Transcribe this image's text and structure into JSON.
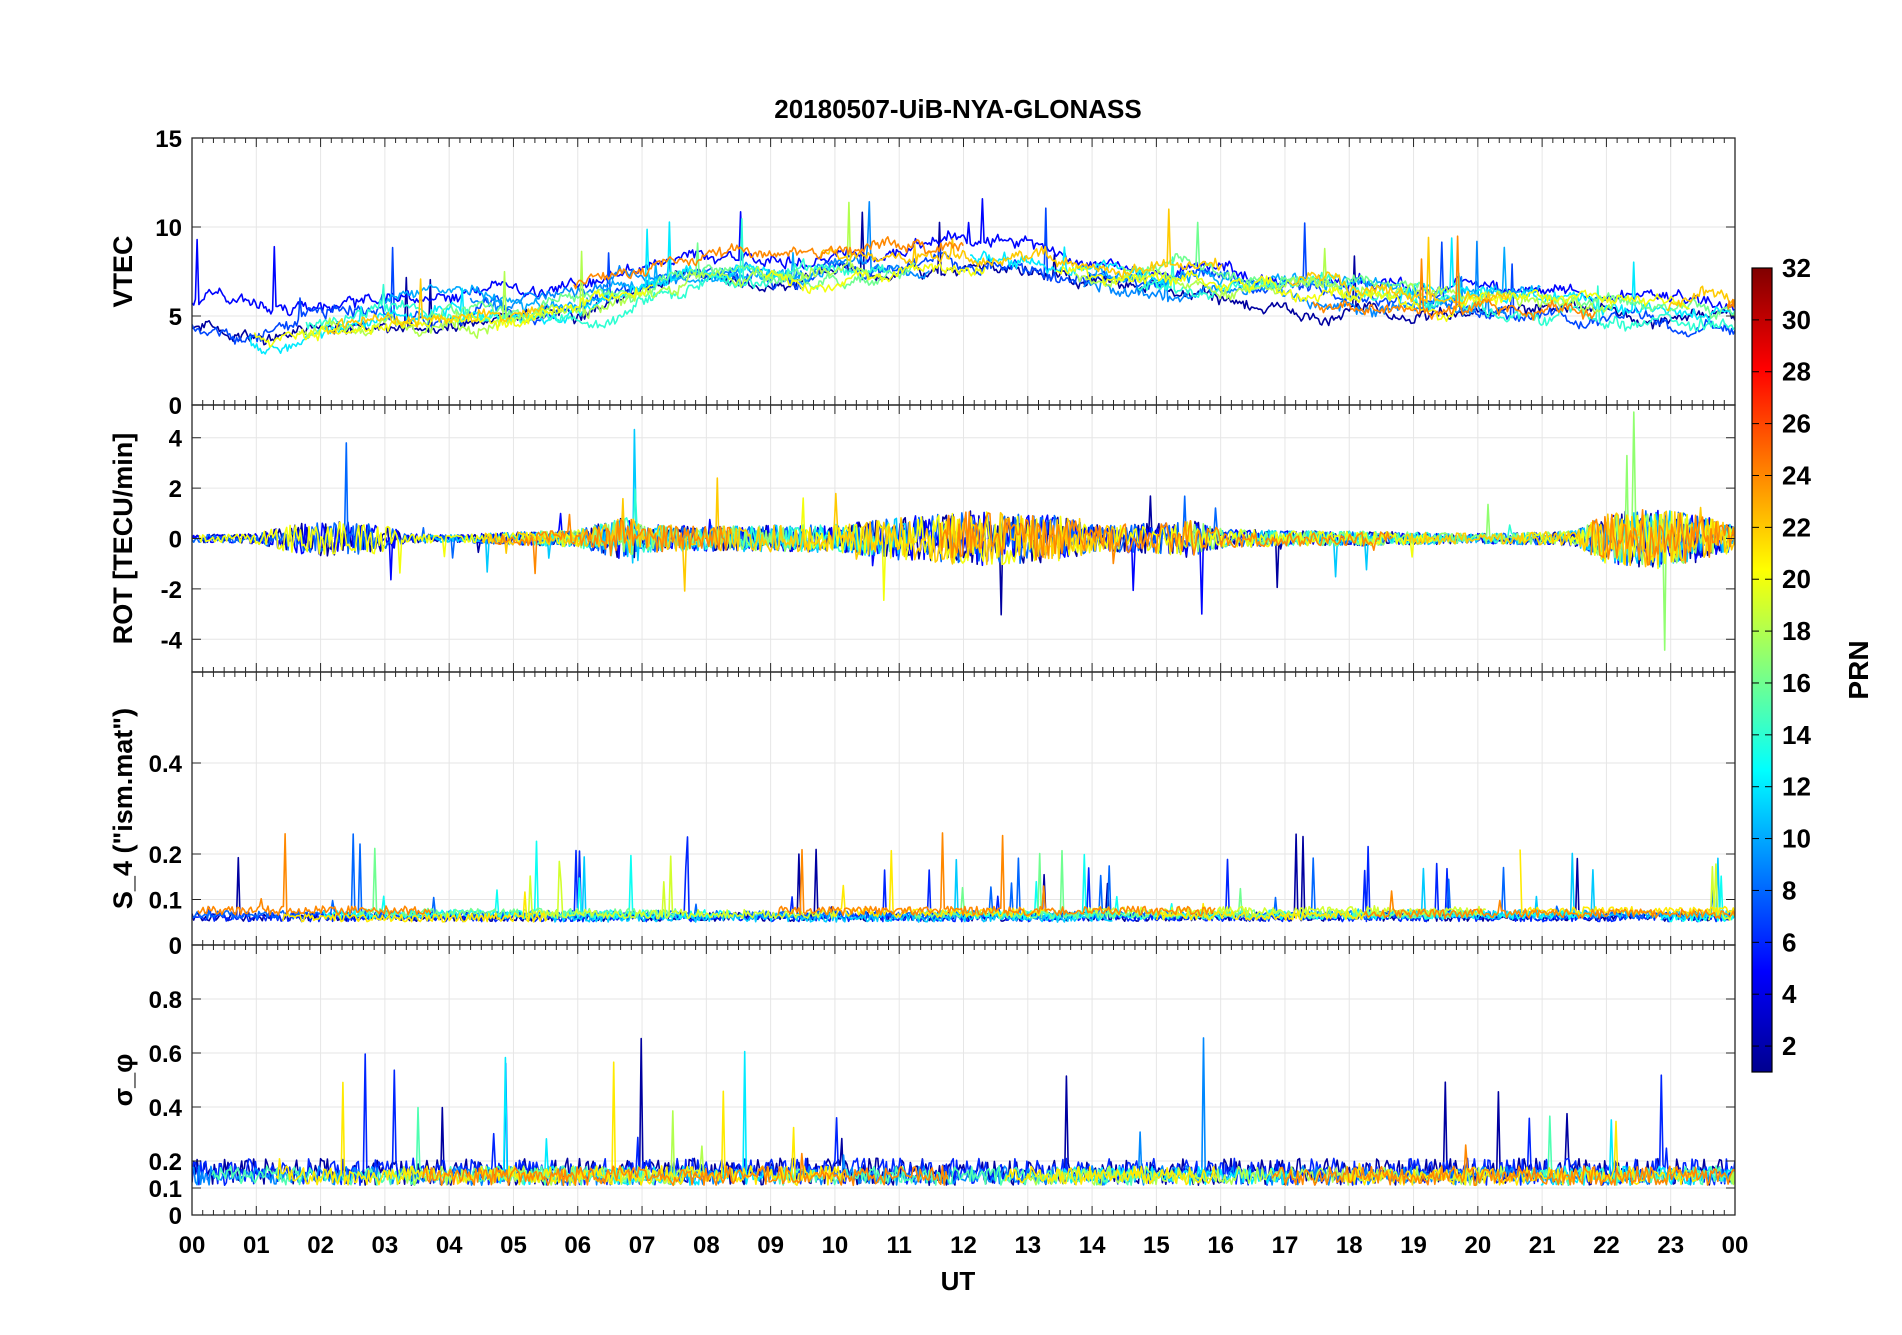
{
  "figure": {
    "title": "20180507-UiB-NYA-GLONASS",
    "xlabel": "UT"
  },
  "colorbar": {
    "label": "PRN",
    "ticks": [
      "2",
      "4",
      "6",
      "8",
      "10",
      "12",
      "14",
      "16",
      "18",
      "20",
      "22",
      "24",
      "26",
      "28",
      "30",
      "32"
    ],
    "range": [
      1,
      32
    ],
    "colormap": "jet",
    "stops": [
      "#00008F",
      "#0000FF",
      "#0080FF",
      "#00FFFF",
      "#80FF80",
      "#FFFF00",
      "#FF8000",
      "#FF0000",
      "#800000"
    ]
  },
  "chart_data": [
    {
      "id": "vtec",
      "type": "line",
      "ylabel": "VTEC",
      "xlim": [
        0,
        24
      ],
      "ylim": [
        0,
        15
      ],
      "yticks": [
        "0",
        "5",
        "10",
        "15"
      ],
      "yticks_values": [
        0,
        5,
        10,
        15
      ],
      "baseline": {
        "knots_x": [
          0,
          1,
          2,
          3,
          5,
          6,
          7,
          8,
          9,
          10,
          11,
          12,
          13,
          14,
          15,
          16,
          17,
          18,
          19,
          20,
          21,
          22,
          23,
          24
        ],
        "knots_y": [
          4.8,
          4.4,
          4.9,
          5.3,
          5.6,
          6.0,
          6.9,
          7.6,
          7.4,
          7.7,
          7.9,
          8.2,
          8.1,
          7.2,
          7.1,
          6.8,
          6.5,
          6.2,
          6.1,
          6.0,
          5.8,
          5.6,
          5.2,
          5.0
        ]
      },
      "noise": 1.1,
      "spikes": 2.5,
      "series_prn": [
        2,
        5,
        7,
        9,
        10,
        12,
        14,
        16,
        18,
        20,
        22,
        24
      ],
      "note": "Multiple GLONASS PRN traces, dense time series"
    },
    {
      "id": "rot",
      "type": "line",
      "ylabel": "ROT [TECU/min]",
      "xlim": [
        0,
        24
      ],
      "ylim": [
        -5.3,
        5.3
      ],
      "yticks": [
        "-4",
        "-2",
        "0",
        "2",
        "4"
      ],
      "yticks_values": [
        -4,
        -2,
        0,
        2,
        4
      ],
      "activity": {
        "knots_x": [
          0,
          1,
          1.4,
          2,
          3,
          3.3,
          4,
          6,
          6.8,
          7,
          8,
          10,
          11,
          12,
          13,
          13.5,
          14,
          15,
          15.5,
          16,
          17,
          18,
          20,
          21.5,
          22,
          22.8,
          23.5,
          24
        ],
        "knots_y": [
          0.15,
          0.2,
          0.5,
          0.7,
          0.6,
          0.2,
          0.15,
          0.35,
          0.9,
          0.55,
          0.5,
          0.55,
          0.85,
          1.1,
          1.0,
          0.9,
          0.55,
          0.6,
          0.75,
          0.4,
          0.3,
          0.3,
          0.2,
          0.3,
          1.0,
          1.2,
          0.9,
          0.5
        ]
      },
      "series_prn": [
        2,
        5,
        8,
        11,
        14,
        17,
        20,
        22,
        24
      ],
      "note": "Rate of TEC, centered near 0 with bursts up to about +/-4"
    },
    {
      "id": "s4",
      "type": "line",
      "ylabel": "S_4 (\"ism.mat\")",
      "xlim": [
        0,
        24
      ],
      "ylim": [
        0,
        0.6
      ],
      "yticks": [
        "0",
        "0.1",
        "0.2",
        "0.4"
      ],
      "yticks_values": [
        0,
        0.1,
        0.2,
        0.4
      ],
      "base_value": 0.06,
      "series_prn": [
        2,
        6,
        8,
        11,
        13,
        16,
        19,
        21,
        24
      ],
      "note": "Amplitude scintillation index, mostly 0.05-0.15 with peaks ~0.3"
    },
    {
      "id": "sigphi",
      "type": "line",
      "ylabel": "σ_φ",
      "xlim": [
        0,
        24
      ],
      "ylim": [
        0,
        1.0
      ],
      "yticks": [
        "0",
        "0.1",
        "0.2",
        "0.4",
        "0.6",
        "0.8"
      ],
      "yticks_values": [
        0,
        0.1,
        0.2,
        0.4,
        0.6,
        0.8
      ],
      "base_value": 0.14,
      "series_prn": [
        2,
        6,
        9,
        12,
        15,
        18,
        21,
        24
      ],
      "note": "Phase scintillation index, mostly 0.1-0.25 with spikes to ~0.8"
    }
  ],
  "xaxis": {
    "ticks": [
      "00",
      "01",
      "02",
      "03",
      "04",
      "05",
      "06",
      "07",
      "08",
      "09",
      "10",
      "11",
      "12",
      "13",
      "14",
      "15",
      "16",
      "17",
      "18",
      "19",
      "20",
      "21",
      "22",
      "23",
      "00"
    ],
    "tick_hours": [
      0,
      1,
      2,
      3,
      4,
      5,
      6,
      7,
      8,
      9,
      10,
      11,
      12,
      13,
      14,
      15,
      16,
      17,
      18,
      19,
      20,
      21,
      22,
      23,
      24
    ]
  }
}
